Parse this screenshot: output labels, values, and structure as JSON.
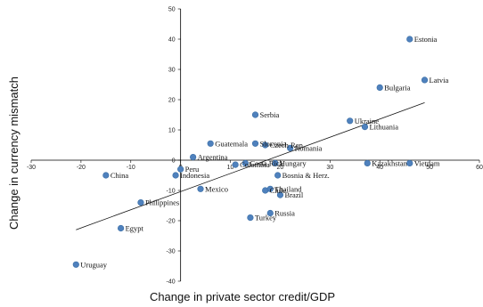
{
  "chart_data": {
    "type": "scatter",
    "xlabel": "Change in private sector credit/GDP",
    "ylabel": "Change in currency mismatch",
    "xlim": [
      -30,
      60
    ],
    "ylim": [
      -40,
      50
    ],
    "x_ticks": [
      "-30",
      "-20",
      "-10",
      "0",
      "10",
      "20",
      "30",
      "40",
      "50",
      "60"
    ],
    "y_ticks": [
      "50",
      "40",
      "30",
      "20",
      "10",
      "0",
      "-10",
      "-20",
      "-30",
      "-40"
    ],
    "marker_color": "#4f81bd",
    "trendline": {
      "x": [
        -21,
        49
      ],
      "y": [
        -23,
        19
      ]
    },
    "points": [
      {
        "label": "Estonia",
        "x": 46,
        "y": 40
      },
      {
        "label": "Latvia",
        "x": 49,
        "y": 26.5
      },
      {
        "label": "Bulgaria",
        "x": 40,
        "y": 24
      },
      {
        "label": "Serbia",
        "x": 15,
        "y": 15
      },
      {
        "label": "Ukraine",
        "x": 34,
        "y": 13
      },
      {
        "label": "Lithuania",
        "x": 37,
        "y": 11
      },
      {
        "label": "Guatemala",
        "x": 6,
        "y": 5.5
      },
      {
        "label": "Slovenia",
        "x": 15,
        "y": 5.5
      },
      {
        "label": "Czech Rep.",
        "x": 17,
        "y": 5
      },
      {
        "label": "Romania",
        "x": 22,
        "y": 4
      },
      {
        "label": "Argentina",
        "x": 2.5,
        "y": 1
      },
      {
        "label": "Colombia",
        "x": 11,
        "y": -1.5
      },
      {
        "label": "Costa Rica",
        "x": 13,
        "y": -1
      },
      {
        "label": "Hungary",
        "x": 19,
        "y": -1
      },
      {
        "label": "Peru",
        "x": 0,
        "y": -3
      },
      {
        "label": "Indonesia",
        "x": -1,
        "y": -5
      },
      {
        "label": "Bosnia & Herz.",
        "x": 19.5,
        "y": -5
      },
      {
        "label": "Kazakhstan",
        "x": 37.5,
        "y": -1
      },
      {
        "label": "Vietnam",
        "x": 46,
        "y": -1
      },
      {
        "label": "China",
        "x": -15,
        "y": -5
      },
      {
        "label": "Mexico",
        "x": 4,
        "y": -9.5
      },
      {
        "label": "Chile",
        "x": 17,
        "y": -10
      },
      {
        "label": "Thailand",
        "x": 18,
        "y": -9.5
      },
      {
        "label": "Brazil",
        "x": 20,
        "y": -11.5
      },
      {
        "label": "Philippines",
        "x": -8,
        "y": -14
      },
      {
        "label": "Turkey",
        "x": 14,
        "y": -19
      },
      {
        "label": "Russia",
        "x": 18,
        "y": -17.5
      },
      {
        "label": "Egypt",
        "x": -12,
        "y": -22.5
      },
      {
        "label": "Uruguay",
        "x": -21,
        "y": -34.5
      }
    ]
  }
}
